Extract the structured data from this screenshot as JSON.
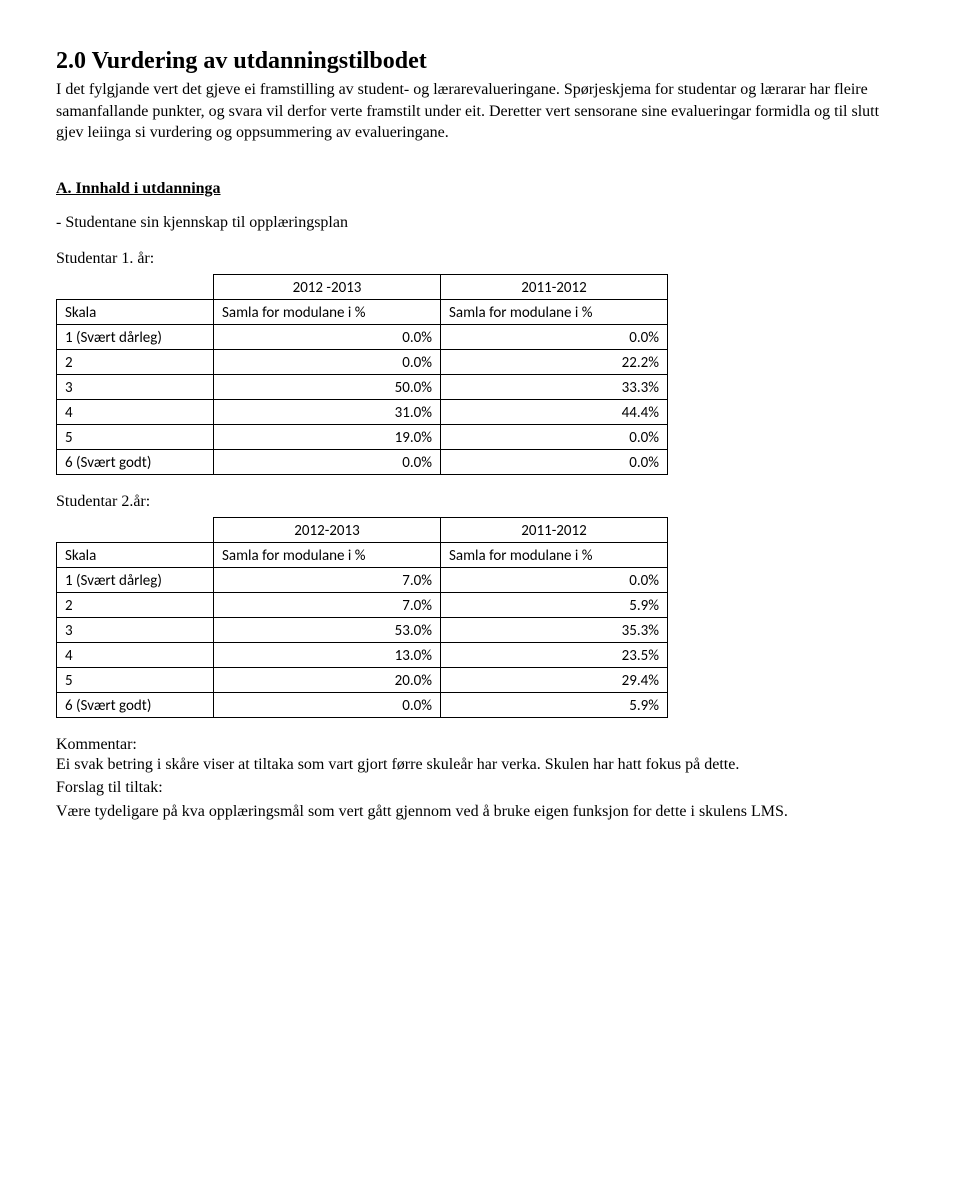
{
  "title": "2.0 Vurdering av utdanningstilbodet",
  "intro": "I det fylgjande vert det gjeve ei framstilling av student- og lærarevalueringane. Spørjeskjema for studentar og lærarar har fleire samanfallande punkter, og svara vil derfor verte framstilt under eit. Deretter vert sensorane sine evalueringar formidla og til slutt gjev leiinga si vurdering og oppsummering av evalueringane.",
  "sectionA": {
    "heading": "A. Innhald i utdanninga",
    "subhead": "- Studentane sin kjennskap til opplæringsplan"
  },
  "table_common": {
    "skala_header": "Skala",
    "col_header": "Samla for modulane i %",
    "row_labels": [
      "1 (Svært dårleg)",
      "2",
      "3",
      "4",
      "5",
      "6 (Svært godt)"
    ]
  },
  "student1": {
    "label": "Studentar 1. år:",
    "years": [
      "2012 -2013",
      "2011-2012"
    ],
    "rows": [
      [
        "0.0%",
        "0.0%"
      ],
      [
        "0.0%",
        "22.2%"
      ],
      [
        "50.0%",
        "33.3%"
      ],
      [
        "31.0%",
        "44.4%"
      ],
      [
        "19.0%",
        "0.0%"
      ],
      [
        "0.0%",
        "0.0%"
      ]
    ]
  },
  "student2": {
    "label": "Studentar 2.år:",
    "years": [
      "2012-2013",
      "2011-2012"
    ],
    "rows": [
      [
        "7.0%",
        "0.0%"
      ],
      [
        "7.0%",
        "5.9%"
      ],
      [
        "53.0%",
        "35.3%"
      ],
      [
        "13.0%",
        "23.5%"
      ],
      [
        "20.0%",
        "29.4%"
      ],
      [
        "0.0%",
        "5.9%"
      ]
    ]
  },
  "kommentar": {
    "label": "Kommentar:",
    "body": "Ei svak betring i skåre viser at tiltaka som vart gjort førre skuleår har verka. Skulen har hatt fokus på dette.",
    "forslag_label": "Forslag til tiltak:",
    "forslag_body": "Være tydeligare på kva opplæringsmål som vert gått gjennom ved å bruke eigen funksjon for dette i skulens LMS."
  }
}
